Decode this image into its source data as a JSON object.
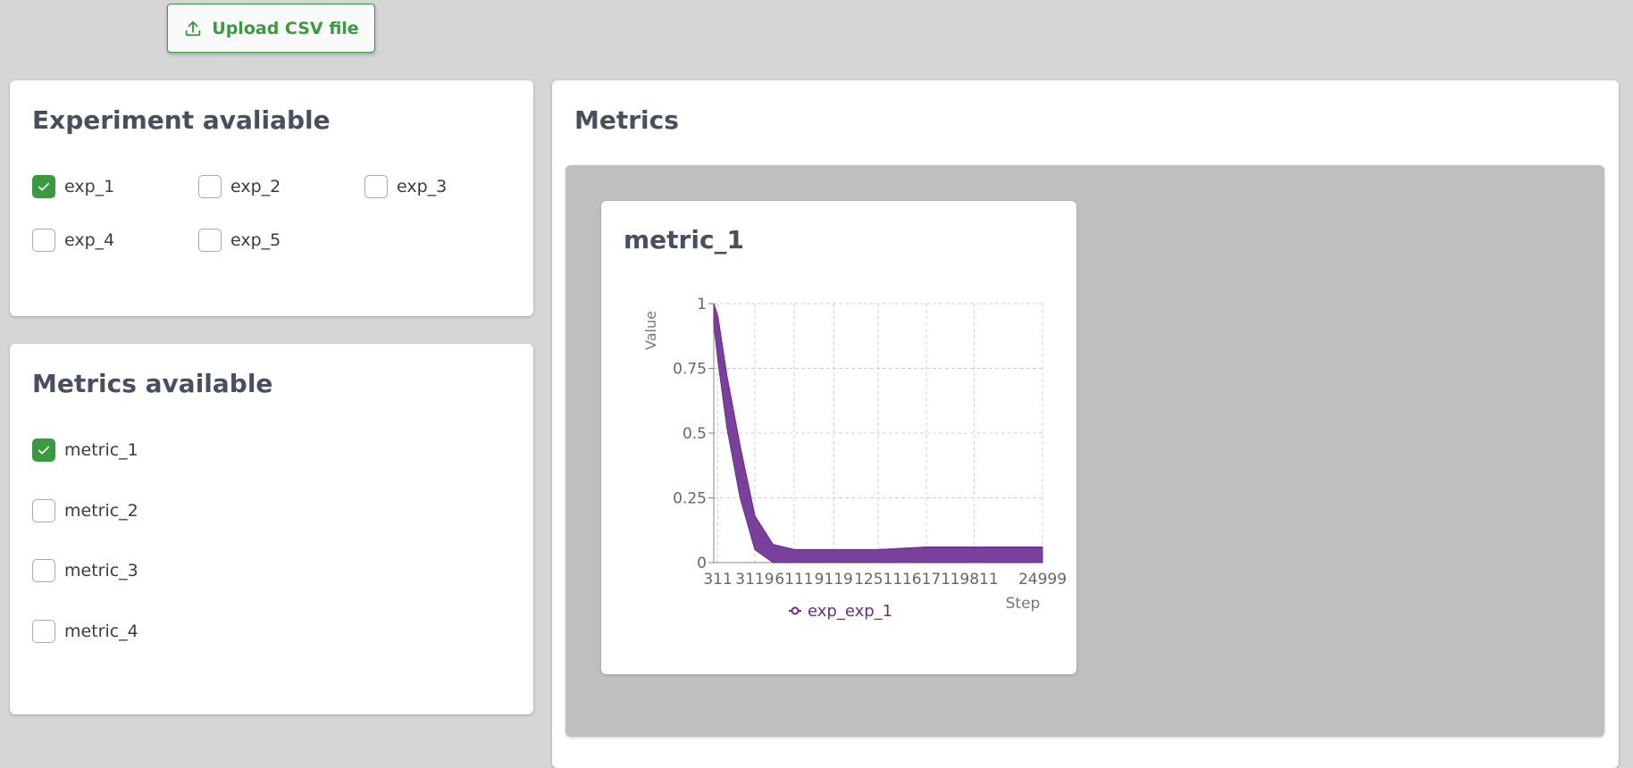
{
  "toolbar": {
    "upload_label": "Upload CSV file",
    "upload_icon": "upload-icon"
  },
  "experiments": {
    "title": "Experiment avaliable",
    "items": [
      {
        "label": "exp_1",
        "checked": true
      },
      {
        "label": "exp_2",
        "checked": false
      },
      {
        "label": "exp_3",
        "checked": false
      },
      {
        "label": "exp_4",
        "checked": false
      },
      {
        "label": "exp_5",
        "checked": false
      }
    ]
  },
  "metrics_available": {
    "title": "Metrics available",
    "items": [
      {
        "label": "metric_1",
        "checked": true
      },
      {
        "label": "metric_2",
        "checked": false
      },
      {
        "label": "metric_3",
        "checked": false
      },
      {
        "label": "metric_4",
        "checked": false
      }
    ]
  },
  "metrics_panel": {
    "title": "Metrics"
  },
  "colors": {
    "accent": "#3a9a3f",
    "series": "#6b2c91",
    "title": "#48505e"
  },
  "chart_data": {
    "type": "line",
    "title": "metric_1",
    "xlabel": "Step",
    "ylabel": "Value",
    "x_ticks": [
      "311",
      "3119",
      "6111",
      "9119",
      "12511",
      "16171",
      "19811",
      "24999"
    ],
    "y_ticks": [
      "0",
      "0.25",
      "0.5",
      "0.75",
      "1"
    ],
    "xlim": [
      0,
      24999
    ],
    "ylim": [
      0,
      1
    ],
    "grid": true,
    "legend_position": "bottom",
    "series": [
      {
        "name": "exp_exp_1",
        "color": "#6b2c91",
        "x": [
          0,
          311,
          1000,
          2000,
          3119,
          4500,
          6111,
          9119,
          12511,
          16171,
          19811,
          24999
        ],
        "y_min": [
          0.92,
          0.78,
          0.52,
          0.25,
          0.05,
          0.0,
          0.0,
          0.0,
          0.0,
          0.0,
          0.0,
          0.0
        ],
        "y_max": [
          1.0,
          0.95,
          0.72,
          0.45,
          0.18,
          0.07,
          0.05,
          0.05,
          0.05,
          0.06,
          0.06,
          0.06
        ]
      }
    ]
  }
}
